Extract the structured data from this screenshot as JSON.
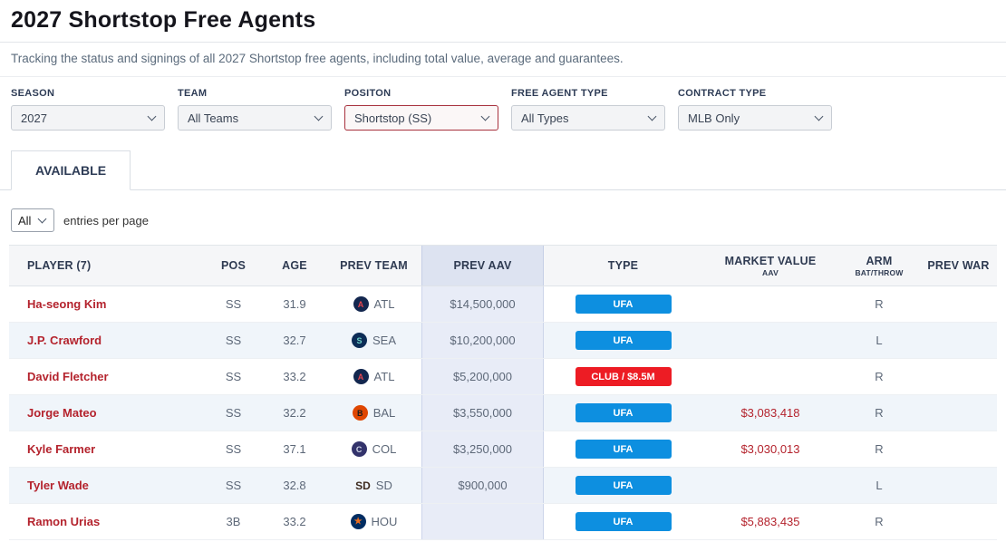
{
  "page": {
    "title": "2027 Shortstop Free Agents",
    "subtitle": "Tracking the status and signings of all 2027 Shortstop free agents, including total value, average and guarantees."
  },
  "filters": [
    {
      "label": "SEASON",
      "value": "2027"
    },
    {
      "label": "TEAM",
      "value": "All Teams"
    },
    {
      "label": "POSITON",
      "value": "Shortstop (SS)"
    },
    {
      "label": "FREE AGENT TYPE",
      "value": "All Types"
    },
    {
      "label": "CONTRACT TYPE",
      "value": "MLB Only"
    }
  ],
  "tabs": {
    "available": "AVAILABLE"
  },
  "pagination": {
    "entries_value": "All",
    "entries_label": "entries per page"
  },
  "colors": {
    "player_link_red": "#b4232d",
    "badge_blue": "#0d8fe0",
    "badge_red": "#ed1c24",
    "aav_column_bg": "#e8ecf7",
    "filter_highlight_border": "#a8323e"
  },
  "table": {
    "headers": {
      "player": "PLAYER (7)",
      "pos": "POS",
      "age": "AGE",
      "prev_team": "PREV TEAM",
      "prev_aav": "PREV AAV",
      "type": "TYPE",
      "market_value": "MARKET VALUE",
      "market_value_sub": "AAV",
      "arm": "ARM",
      "arm_sub": "BAT/THROW",
      "prev_war": "PREV WAR"
    },
    "rows": [
      {
        "player": "Ha-seong Kim",
        "pos": "SS",
        "age": "31.9",
        "team": "ATL",
        "team_logo": "A",
        "prev_aav": "$14,500,000",
        "type": "UFA",
        "market_value": "",
        "arm": "R",
        "prev_war": ""
      },
      {
        "player": "J.P. Crawford",
        "pos": "SS",
        "age": "32.7",
        "team": "SEA",
        "team_logo": "S",
        "prev_aav": "$10,200,000",
        "type": "UFA",
        "market_value": "",
        "arm": "L",
        "prev_war": ""
      },
      {
        "player": "David Fletcher",
        "pos": "SS",
        "age": "33.2",
        "team": "ATL",
        "team_logo": "A",
        "prev_aav": "$5,200,000",
        "type": "CLUB / $8.5M",
        "market_value": "",
        "arm": "R",
        "prev_war": ""
      },
      {
        "player": "Jorge Mateo",
        "pos": "SS",
        "age": "32.2",
        "team": "BAL",
        "team_logo": "B",
        "prev_aav": "$3,550,000",
        "type": "UFA",
        "market_value": "$3,083,418",
        "arm": "R",
        "prev_war": ""
      },
      {
        "player": "Kyle Farmer",
        "pos": "SS",
        "age": "37.1",
        "team": "COL",
        "team_logo": "C",
        "prev_aav": "$3,250,000",
        "type": "UFA",
        "market_value": "$3,030,013",
        "arm": "R",
        "prev_war": ""
      },
      {
        "player": "Tyler Wade",
        "pos": "SS",
        "age": "32.8",
        "team": "SD",
        "team_logo": "SD",
        "prev_aav": "$900,000",
        "type": "UFA",
        "market_value": "",
        "arm": "L",
        "prev_war": ""
      },
      {
        "player": "Ramon Urias",
        "pos": "3B",
        "age": "33.2",
        "team": "HOU",
        "team_logo": "★",
        "prev_aav": "",
        "type": "UFA",
        "market_value": "$5,883,435",
        "arm": "R",
        "prev_war": ""
      }
    ]
  }
}
